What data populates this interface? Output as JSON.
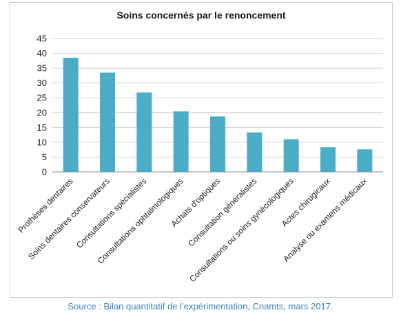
{
  "chart_data": {
    "type": "bar",
    "title": "Soins concernés par le renoncement",
    "xlabel": "",
    "ylabel": "",
    "ylim": [
      0,
      45
    ],
    "yticks": [
      "0",
      "5",
      "10",
      "15",
      "20",
      "25",
      "30",
      "35",
      "40",
      "45"
    ],
    "grid": true,
    "legend": "none",
    "bar_color": "#4bacc6",
    "categories": [
      "Prothèses dentaires",
      "Soins dentaires conservateurs",
      "Consultations spécialistes",
      "Consultations ophtalmologiques",
      "Achats d'optiques",
      "Consultation généralistes",
      "Consultations ou soins gynécologiques",
      "Actes chirugicaux",
      "Analyse ou examens médicaux"
    ],
    "values": [
      38.5,
      33.5,
      26.8,
      20.4,
      18.7,
      13.3,
      11.0,
      8.3,
      7.6
    ]
  },
  "footer": {
    "source": "Source : Bilan quantitatif de l’expérimentation, Cnamts, mars 2017."
  }
}
